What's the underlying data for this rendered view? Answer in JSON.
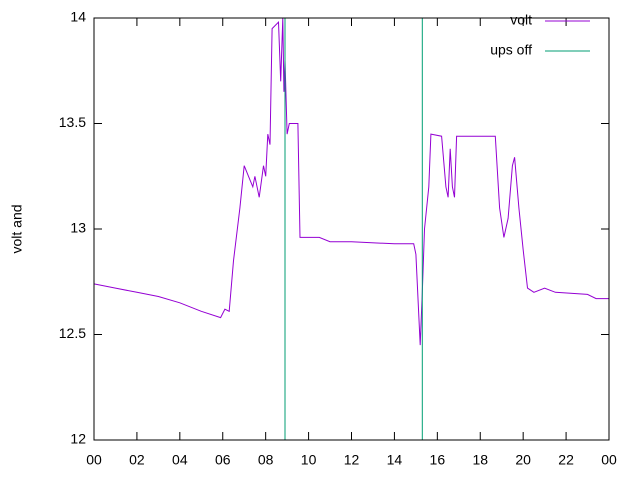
{
  "chart_data": {
    "type": "line",
    "ylabel": "volt and",
    "xlim": [
      0,
      24
    ],
    "xticks": [
      {
        "value": 0,
        "label": "00"
      },
      {
        "value": 2,
        "label": "02"
      },
      {
        "value": 4,
        "label": "04"
      },
      {
        "value": 6,
        "label": "06"
      },
      {
        "value": 8,
        "label": "08"
      },
      10,
      12,
      14,
      16,
      18,
      20,
      22,
      {
        "value": 24,
        "label": "00"
      }
    ],
    "ylim": [
      12,
      14
    ],
    "yticks": [
      12,
      12.5,
      13,
      13.5,
      14
    ],
    "legend": "top-right",
    "series": [
      {
        "name": "volt",
        "color": "#9400d3",
        "x": [
          0,
          1,
          2,
          3,
          4,
          5,
          5.9,
          6.1,
          6.3,
          6.5,
          6.8,
          7.0,
          7.2,
          7.4,
          7.5,
          7.7,
          7.9,
          8.0,
          8.1,
          8.2,
          8.3,
          8.6,
          8.7,
          8.8,
          8.85,
          8.9,
          9.0,
          9.1,
          9.5,
          9.6,
          10.5,
          11,
          12,
          14,
          14.9,
          15.0,
          15.2,
          15.3,
          15.4,
          15.6,
          15.7,
          16.2,
          16.4,
          16.5,
          16.6,
          16.7,
          16.8,
          16.9,
          18.7,
          18.9,
          19.1,
          19.3,
          19.5,
          19.6,
          19.8,
          20.0,
          20.2,
          20.5,
          21,
          21.5,
          23,
          23.4,
          24
        ],
        "values": [
          12.74,
          12.72,
          12.7,
          12.68,
          12.65,
          12.61,
          12.58,
          12.62,
          12.61,
          12.85,
          13.1,
          13.3,
          13.25,
          13.2,
          13.25,
          13.15,
          13.3,
          13.25,
          13.45,
          13.4,
          13.95,
          13.98,
          13.7,
          14.0,
          13.65,
          13.8,
          13.45,
          13.5,
          13.5,
          12.96,
          12.96,
          12.94,
          12.94,
          12.93,
          12.93,
          12.88,
          12.45,
          12.7,
          13.0,
          13.2,
          13.45,
          13.44,
          13.2,
          13.15,
          13.38,
          13.2,
          13.15,
          13.44,
          13.44,
          13.1,
          12.96,
          13.05,
          13.3,
          13.34,
          13.1,
          12.9,
          12.72,
          12.7,
          12.72,
          12.7,
          12.69,
          12.67,
          12.67
        ]
      },
      {
        "name": "ups off",
        "color": "#009e73",
        "x": [
          8.9,
          8.9,
          null,
          15.3,
          15.3
        ],
        "values": [
          12,
          14,
          null,
          12,
          14
        ]
      }
    ]
  }
}
